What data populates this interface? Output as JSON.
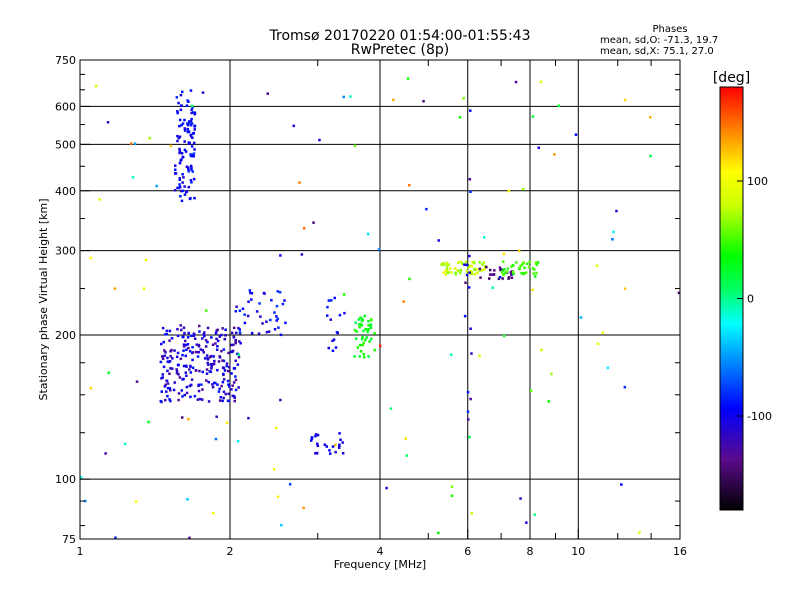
{
  "header": {
    "title_line1": "Tromsø 20170220 01:54:00-01:55:43",
    "title_line2": "RwPretec (8p)"
  },
  "phases_box": {
    "title": "Phases",
    "o_line": "mean, sd,O: -71.3, 19.7",
    "x_line": "mean, sd,X:  75.1, 27.0"
  },
  "chart_data": {
    "type": "scatter",
    "title": "Tromsø 20170220 01:54:00-01:55:43",
    "subtitle": "RwPretec (8p)",
    "xlabel": "Frequency [MHz]",
    "ylabel": "Stationary phase Virtual Height [km]",
    "xscale": "log",
    "yscale": "log",
    "xlim": [
      1,
      16
    ],
    "ylim": [
      75,
      750
    ],
    "x_ticks": [
      1,
      2,
      4,
      6,
      8,
      10,
      16
    ],
    "x_tick_labels": [
      "1",
      "2",
      "4",
      "6",
      "8",
      "10",
      "16"
    ],
    "y_ticks": [
      75,
      100,
      200,
      300,
      400,
      500,
      600,
      750
    ],
    "y_tick_labels": [
      "75",
      "100",
      "200",
      "300",
      "400",
      "500",
      "600",
      "750"
    ],
    "grid": true,
    "colorbar": {
      "label": "[deg]",
      "range": [
        -180,
        180
      ],
      "ticks": [
        100,
        0,
        -100
      ],
      "tick_labels": [
        "100",
        "0",
        "-100"
      ]
    },
    "clusters": [
      {
        "x": [
          1.55,
          1.7
        ],
        "y": [
          380,
          650
        ],
        "phase": [
          -80,
          -110
        ],
        "count": 110
      },
      {
        "x": [
          1.45,
          2.1
        ],
        "y": [
          145,
          210
        ],
        "phase": [
          -85,
          -135
        ],
        "count": 260
      },
      {
        "x": [
          2.05,
          2.6
        ],
        "y": [
          200,
          250
        ],
        "phase": [
          -75,
          -115
        ],
        "count": 40
      },
      {
        "x": [
          2.9,
          3.4
        ],
        "y": [
          113,
          125
        ],
        "phase": [
          -95,
          -110
        ],
        "count": 25
      },
      {
        "x": [
          3.1,
          3.4
        ],
        "y": [
          180,
          240
        ],
        "phase": [
          -80,
          -110
        ],
        "count": 15
      },
      {
        "x": [
          3.55,
          3.9
        ],
        "y": [
          180,
          220
        ],
        "phase": [
          15,
          50
        ],
        "count": 45
      },
      {
        "x": [
          5.3,
          6.5
        ],
        "y": [
          268,
          285
        ],
        "phase": [
          60,
          95
        ],
        "count": 60
      },
      {
        "x": [
          6.2,
          7.4
        ],
        "y": [
          262,
          278
        ],
        "phase": [
          -130,
          -155
        ],
        "count": 25
      },
      {
        "x": [
          7.0,
          8.4
        ],
        "y": [
          265,
          285
        ],
        "phase": [
          35,
          60
        ],
        "count": 40
      },
      {
        "x": [
          5.9,
          6.1
        ],
        "y": [
          130,
          600
        ],
        "phase": [
          -80,
          -140
        ],
        "count": 18
      },
      {
        "x": [
          1.0,
          16.0
        ],
        "y": [
          75,
          700
        ],
        "phase": [
          -150,
          150
        ],
        "count": 110
      }
    ],
    "marks": [
      {
        "x": 1.05,
        "y": 155,
        "phase": 120
      },
      {
        "x": 1.05,
        "y": 290,
        "phase": 110
      },
      {
        "x": 1.3,
        "y": 160,
        "phase": -140
      },
      {
        "x": 4.25,
        "y": 620,
        "phase": 130
      },
      {
        "x": 4.0,
        "y": 190,
        "phase": 170
      },
      {
        "x": 7.6,
        "y": 300,
        "phase": 120
      },
      {
        "x": 12.4,
        "y": 620,
        "phase": 120
      },
      {
        "x": 12.4,
        "y": 250,
        "phase": 125
      },
      {
        "x": 1.85,
        "y": 85,
        "phase": 100
      },
      {
        "x": 2.45,
        "y": 105,
        "phase": 110
      },
      {
        "x": 3.25,
        "y": 118,
        "phase": 130
      }
    ]
  }
}
